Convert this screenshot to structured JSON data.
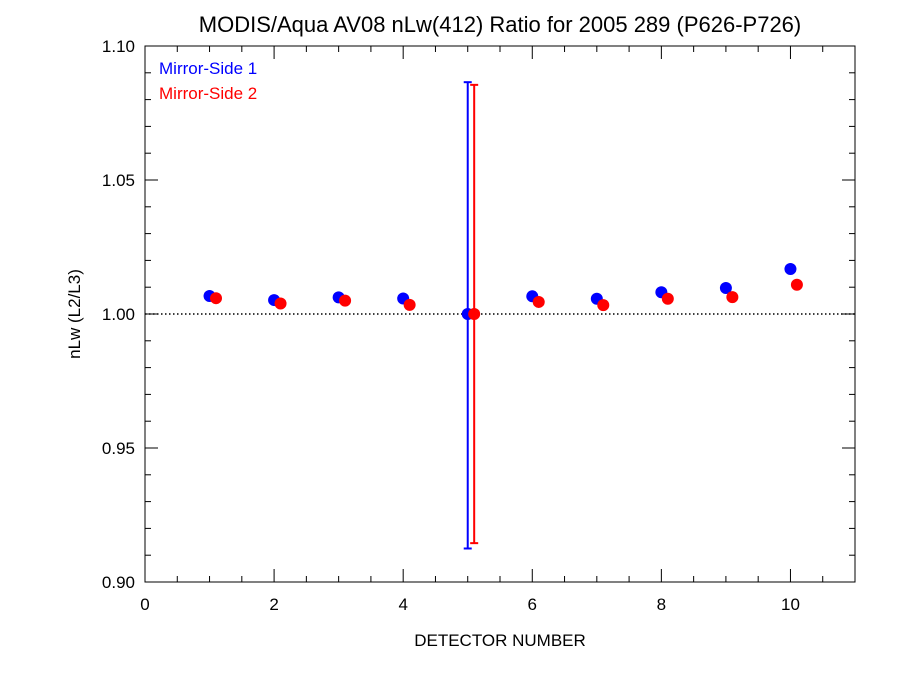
{
  "chart_data": {
    "type": "scatter",
    "title": "MODIS/Aqua AV08 nLw(412) Ratio for 2005 289 (P626-P726)",
    "xlabel": "DETECTOR NUMBER",
    "ylabel": "nLw (L2/L3)",
    "xlim": [
      0,
      11
    ],
    "ylim": [
      0.9,
      1.1
    ],
    "x_ticks": [
      0,
      2,
      4,
      6,
      8,
      10
    ],
    "x_tick_labels": [
      "0",
      "2",
      "4",
      "6",
      "8",
      "10"
    ],
    "y_ticks": [
      0.9,
      0.95,
      1.0,
      1.05,
      1.1
    ],
    "y_tick_labels": [
      "0.90",
      "0.95",
      "1.00",
      "1.05",
      "1.10"
    ],
    "reference_line": 1.0,
    "legend_position": "top-left",
    "grid": false,
    "series": [
      {
        "name": "Mirror-Side 1",
        "color": "#0000ff",
        "x": [
          1,
          2,
          3,
          4,
          5,
          6,
          7,
          8,
          9,
          10
        ],
        "y": [
          1.0067,
          1.0052,
          1.0062,
          1.0058,
          1.0,
          1.0066,
          1.0057,
          1.0081,
          1.0097,
          1.0168
        ],
        "error_bar": {
          "x": 5,
          "low": 0.9125,
          "high": 1.0865
        }
      },
      {
        "name": "Mirror-Side 2",
        "color": "#ff0000",
        "x": [
          1.1,
          2.1,
          3.1,
          4.1,
          5.1,
          6.1,
          7.1,
          8.1,
          9.1,
          10.1
        ],
        "y": [
          1.0059,
          1.0039,
          1.005,
          1.0034,
          1.0,
          1.0045,
          1.0033,
          1.0057,
          1.0063,
          1.0109
        ],
        "error_bar": {
          "x": 5.1,
          "low": 0.9145,
          "high": 1.0855
        }
      }
    ]
  }
}
